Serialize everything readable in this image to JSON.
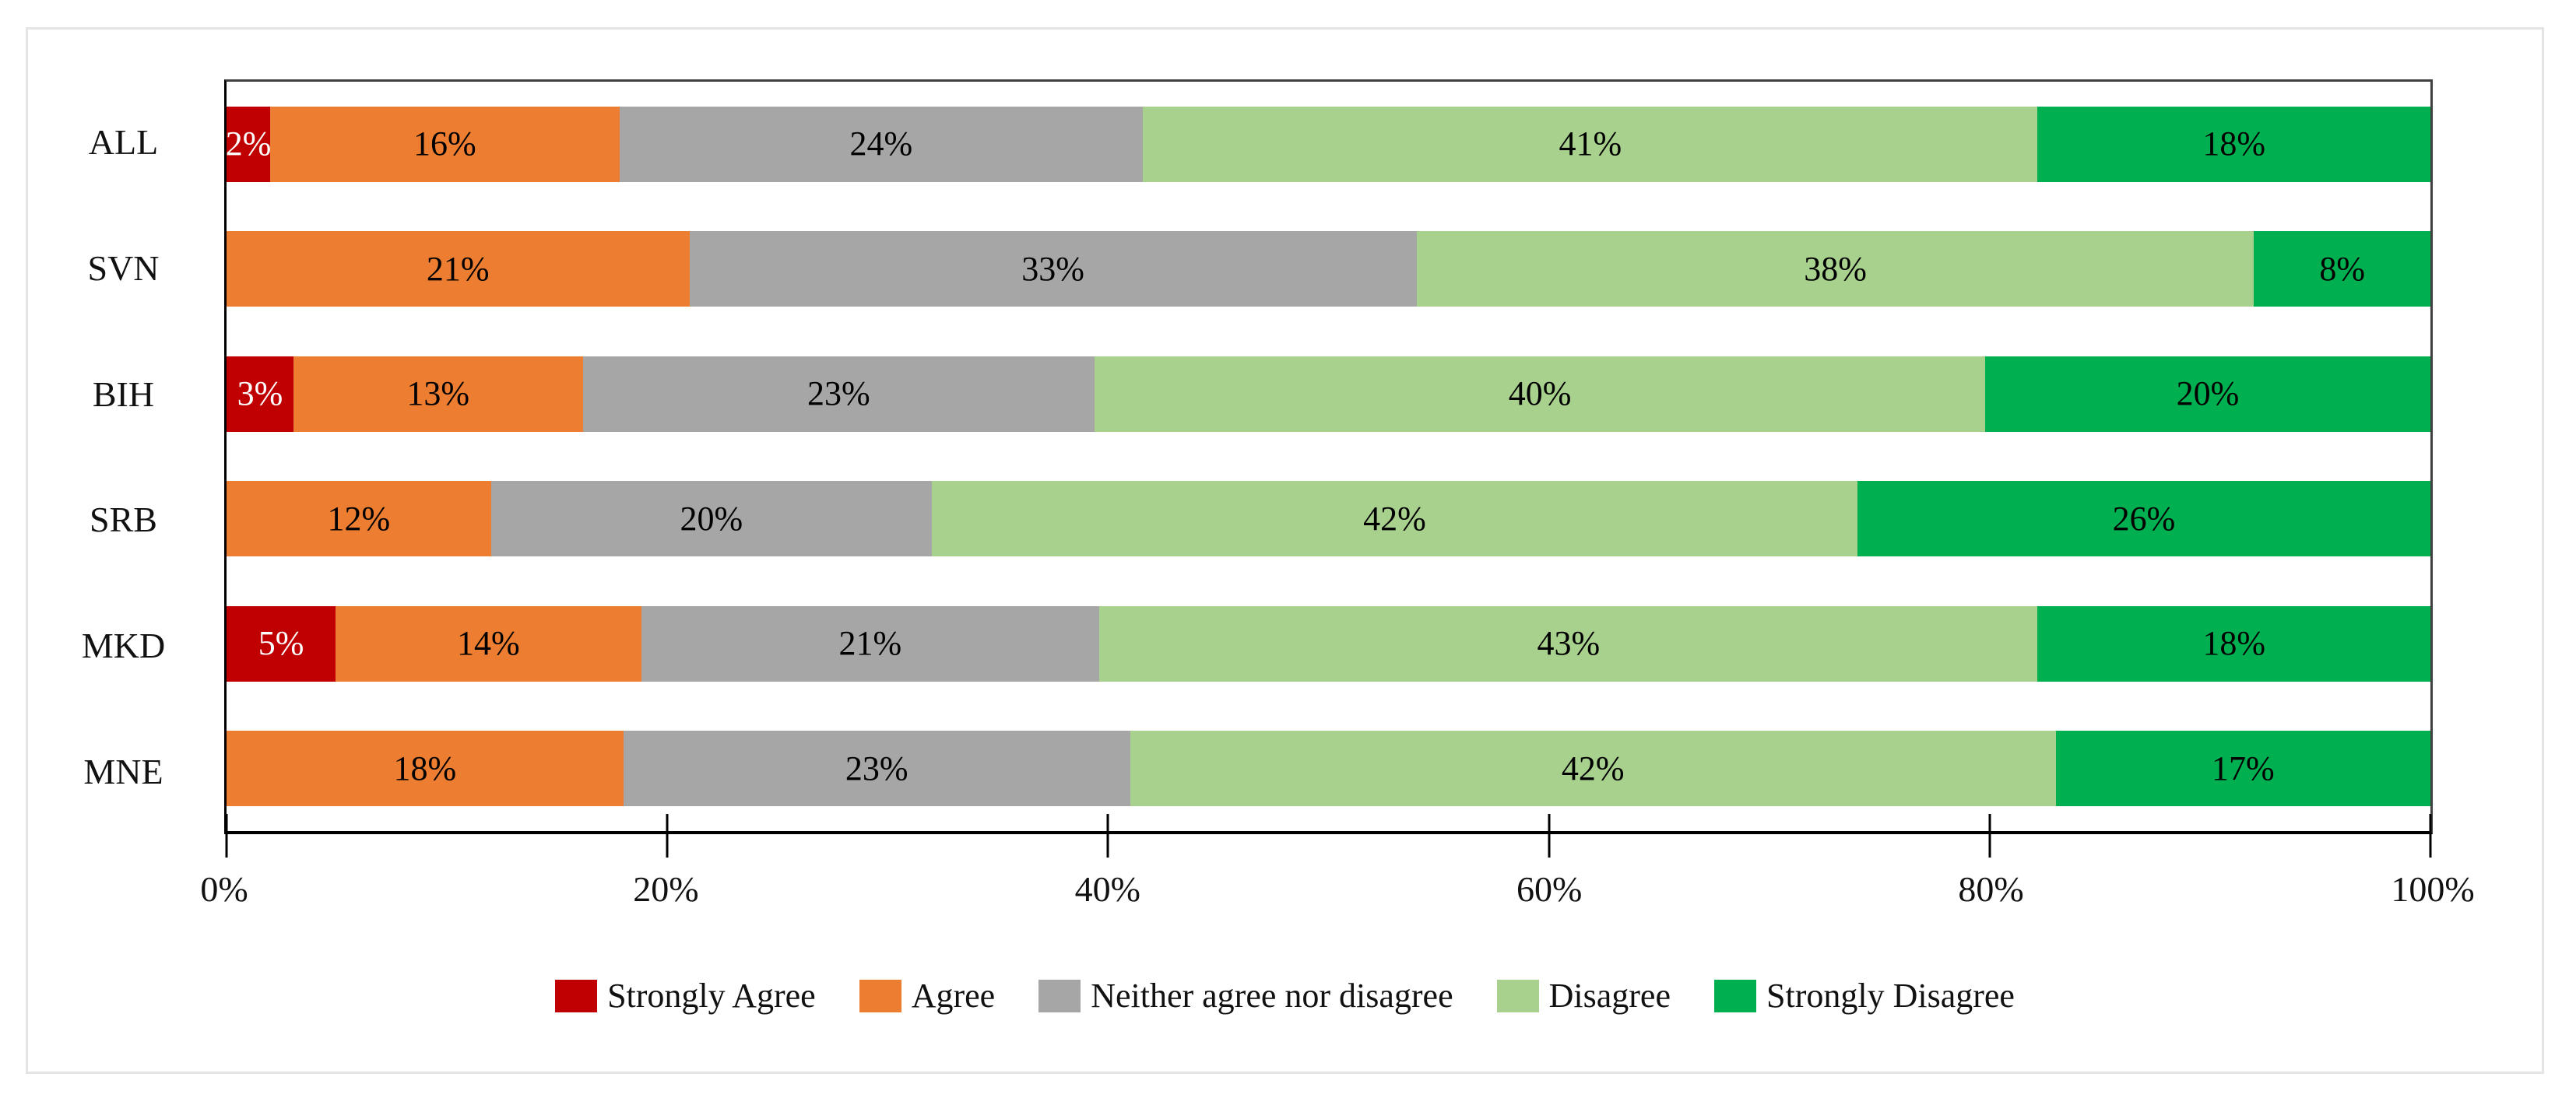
{
  "card": {
    "background": "#ffffff",
    "border_color": "#e4e4e4"
  },
  "chart_data": {
    "type": "bar",
    "orientation": "horizontal-stacked",
    "title": "",
    "xlabel": "",
    "ylabel": "",
    "categories": [
      "ALL",
      "SVN",
      "BIH",
      "SRB",
      "MKD",
      "MNE"
    ],
    "series": [
      {
        "name": "Strongly Agree",
        "color": "#C00000",
        "label_color": "#ffffff",
        "values": [
          2,
          0,
          3,
          0,
          5,
          0
        ]
      },
      {
        "name": "Agree",
        "color": "#ED7D31",
        "label_color": "#000000",
        "values": [
          16,
          21,
          13,
          12,
          14,
          18
        ]
      },
      {
        "name": "Neither agree nor disagree",
        "color": "#A6A6A6",
        "label_color": "#000000",
        "values": [
          24,
          33,
          23,
          20,
          21,
          23
        ]
      },
      {
        "name": "Disagree",
        "color": "#A9D18E",
        "label_color": "#000000",
        "values": [
          41,
          38,
          40,
          42,
          43,
          42
        ]
      },
      {
        "name": "Strongly Disagree",
        "color": "#00B050",
        "label_color": "#000000",
        "values": [
          18,
          8,
          20,
          26,
          18,
          17
        ]
      }
    ],
    "value_suffix": "%",
    "x_axis": {
      "range": [
        0,
        100
      ],
      "tick_labels": [
        "0%",
        "20%",
        "40%",
        "60%",
        "80%",
        "100%"
      ]
    },
    "grid": false,
    "legend_position": "bottom",
    "axis_colors": {
      "axis": "#000000",
      "plot_border": "#404040"
    }
  }
}
